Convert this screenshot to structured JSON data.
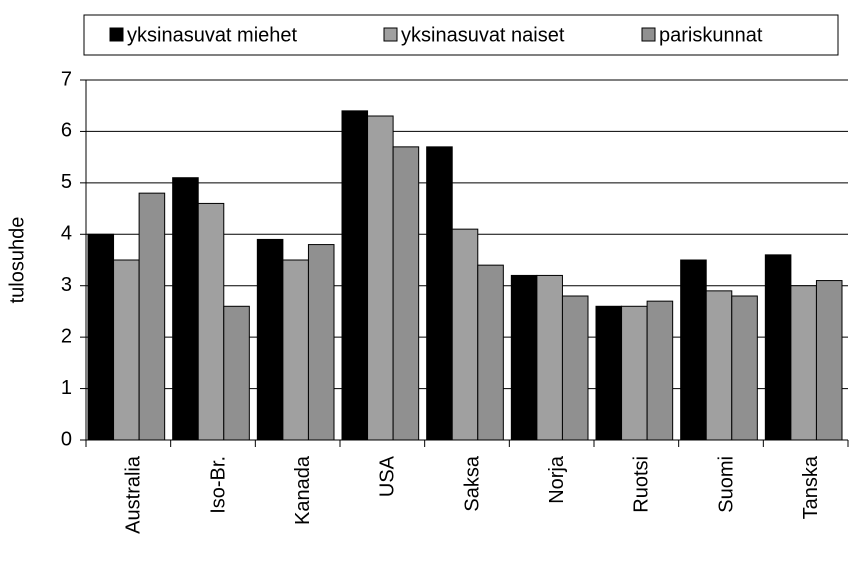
{
  "chart_data": {
    "type": "bar",
    "ylabel": "tulosuhde",
    "categories": [
      "Australia",
      "Iso-Br.",
      "Kanada",
      "USA",
      "Saksa",
      "Norja",
      "Ruotsi",
      "Suomi",
      "Tanska"
    ],
    "series": [
      {
        "name": "yksinasuvat miehet",
        "color": "#000000",
        "values": [
          4.0,
          5.1,
          3.9,
          6.4,
          5.7,
          3.2,
          2.6,
          3.5,
          3.6
        ]
      },
      {
        "name": "yksinasuvat naiset",
        "color": "#a0a0a0",
        "values": [
          3.5,
          4.6,
          3.5,
          6.3,
          4.1,
          3.2,
          2.6,
          2.9,
          3.0
        ]
      },
      {
        "name": "pariskunnat",
        "color": "#909090",
        "values": [
          4.8,
          2.6,
          3.8,
          5.7,
          3.4,
          2.8,
          2.7,
          2.8,
          3.1
        ]
      }
    ],
    "ylim": [
      0,
      7
    ],
    "yticks": [
      0,
      1,
      2,
      3,
      4,
      5,
      6,
      7
    ],
    "grid": true,
    "legend": "top"
  }
}
